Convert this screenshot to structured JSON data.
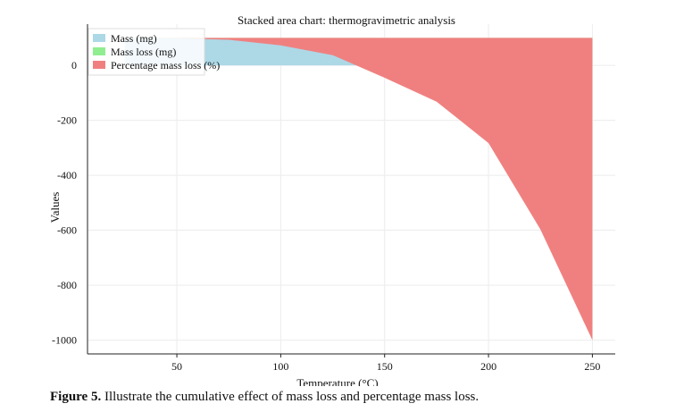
{
  "chart_data": {
    "type": "area",
    "stacked": true,
    "title": "Stacked area chart: thermogravimetric analysis",
    "xlabel": "Temperature (°C)",
    "ylabel": "Values",
    "x": [
      25,
      50,
      75,
      100,
      125,
      150,
      175,
      200,
      225,
      250
    ],
    "xticks": [
      50,
      100,
      150,
      200,
      250
    ],
    "yticks": [
      0,
      -200,
      -400,
      -600,
      -800,
      -1000
    ],
    "ytick_labels": [
      "0",
      "-200",
      "-400",
      "-600",
      "-800",
      "-1000"
    ],
    "xlim": [
      7,
      261
    ],
    "ylim": [
      -1050,
      150
    ],
    "grid": true,
    "legend_position": "top-left",
    "series": [
      {
        "name": "Mass (mg)",
        "color": "#add8e6",
        "values": [
          100,
          99,
          96,
          90,
          70,
          35,
          12,
          3,
          1,
          0
        ]
      },
      {
        "name": "Mass loss (mg)",
        "color": "#90ee90",
        "values": [
          0,
          1,
          4,
          10,
          30,
          65,
          88,
          97,
          99,
          100
        ]
      },
      {
        "name": "Percentage mass loss (%)",
        "color": "#f08080",
        "values": [
          0,
          -1,
          -7,
          -27,
          -63,
          -145,
          -232,
          -383,
          -697,
          -1100
        ]
      }
    ]
  },
  "caption": {
    "label": "Figure 5.",
    "text": " Illustrate the cumulative effect of mass loss and percentage mass loss."
  }
}
